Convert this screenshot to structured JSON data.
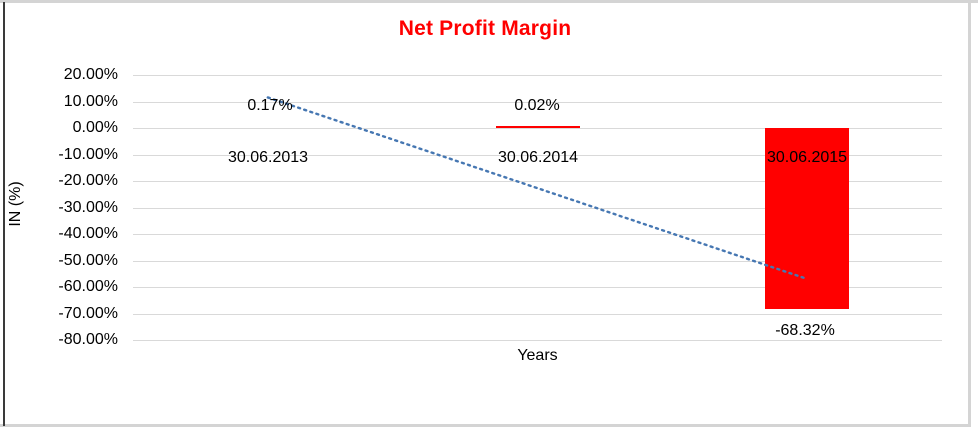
{
  "chart_data": {
    "type": "bar",
    "title": "Net Profit Margin",
    "title_color": "#FF0000",
    "xlabel": "Years",
    "ylabel": "IN (%)",
    "categories": [
      "30.06.2013",
      "30.06.2014",
      "30.06.2015"
    ],
    "series": [
      {
        "name": "Net Profit Margin",
        "color": "#FF0000",
        "values": [
          0.17,
          0.02,
          -68.32
        ],
        "data_labels": [
          "0.17%",
          "0.02%",
          "-68.32%"
        ]
      }
    ],
    "trendline": {
      "type": "linear",
      "style": "dotted",
      "color": "#4677B2"
    },
    "y_axis": {
      "min": -80,
      "max": 20,
      "step": 10,
      "ticks": [
        20,
        10,
        0,
        -10,
        -20,
        -30,
        -40,
        -50,
        -60,
        -70,
        -80
      ],
      "tick_labels": [
        "20.00%",
        "10.00%",
        "0.00%",
        "-10.00%",
        "-20.00%",
        "-30.00%",
        "-40.00%",
        "-50.00%",
        "-60.00%",
        "-70.00%",
        "-80.00%"
      ],
      "gridline_color": "#D9D9D9"
    },
    "legend_position": "none",
    "plot_background": "#FFFFFF",
    "grid": true
  }
}
